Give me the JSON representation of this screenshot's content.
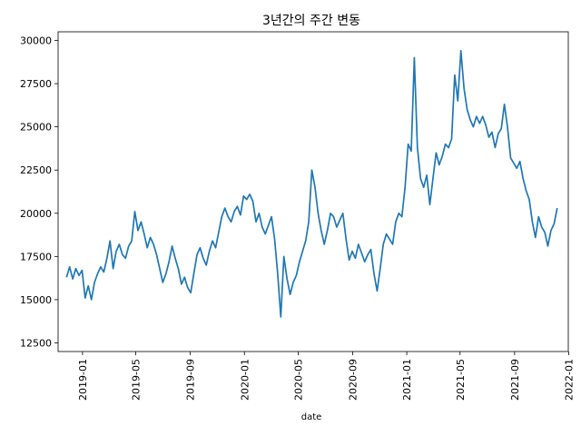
{
  "chart_data": {
    "type": "line",
    "title": "3년간의 주간 변동",
    "xlabel": "date",
    "ylabel": "",
    "ylim": [
      12000,
      30500
    ],
    "xlim": [
      "2018-11-07",
      "2021-12-31"
    ],
    "grid": false,
    "series_color": "#1f77b4",
    "xticks": [
      "2019-01",
      "2019-05",
      "2019-09",
      "2020-01",
      "2020-05",
      "2020-09",
      "2021-01",
      "2021-05",
      "2021-09",
      "2022-01"
    ],
    "yticks": [
      12500,
      15000,
      17500,
      20000,
      22500,
      25000,
      27500,
      30000
    ],
    "ytick_labels": [
      "12500",
      "15000",
      "17500",
      "20000",
      "22500",
      "25000",
      "27500",
      "30000"
    ],
    "series": [
      {
        "values": [
          [
            "2018-11-26",
            16300
          ],
          [
            "2018-12-03",
            16900
          ],
          [
            "2018-12-10",
            16200
          ],
          [
            "2018-12-17",
            16800
          ],
          [
            "2018-12-24",
            16400
          ],
          [
            "2018-12-31",
            16700
          ],
          [
            "2019-01-07",
            15100
          ],
          [
            "2019-01-14",
            15800
          ],
          [
            "2019-01-21",
            15000
          ],
          [
            "2019-01-28",
            16000
          ],
          [
            "2019-02-04",
            16500
          ],
          [
            "2019-02-11",
            16900
          ],
          [
            "2019-02-18",
            16600
          ],
          [
            "2019-02-25",
            17400
          ],
          [
            "2019-03-04",
            18400
          ],
          [
            "2019-03-11",
            16800
          ],
          [
            "2019-03-18",
            17800
          ],
          [
            "2019-03-25",
            18200
          ],
          [
            "2019-04-01",
            17600
          ],
          [
            "2019-04-08",
            17400
          ],
          [
            "2019-04-15",
            18100
          ],
          [
            "2019-04-22",
            18400
          ],
          [
            "2019-04-29",
            20100
          ],
          [
            "2019-05-06",
            19000
          ],
          [
            "2019-05-13",
            19500
          ],
          [
            "2019-05-20",
            18800
          ],
          [
            "2019-05-27",
            18000
          ],
          [
            "2019-06-03",
            18600
          ],
          [
            "2019-06-10",
            18200
          ],
          [
            "2019-06-17",
            17600
          ],
          [
            "2019-06-24",
            16800
          ],
          [
            "2019-07-01",
            16000
          ],
          [
            "2019-07-08",
            16500
          ],
          [
            "2019-07-15",
            17200
          ],
          [
            "2019-07-22",
            18100
          ],
          [
            "2019-07-29",
            17400
          ],
          [
            "2019-08-05",
            16800
          ],
          [
            "2019-08-12",
            15900
          ],
          [
            "2019-08-19",
            16300
          ],
          [
            "2019-08-26",
            15700
          ],
          [
            "2019-09-02",
            15400
          ],
          [
            "2019-09-09",
            16500
          ],
          [
            "2019-09-16",
            17600
          ],
          [
            "2019-09-23",
            18000
          ],
          [
            "2019-09-30",
            17400
          ],
          [
            "2019-10-07",
            17000
          ],
          [
            "2019-10-14",
            17800
          ],
          [
            "2019-10-21",
            18400
          ],
          [
            "2019-10-28",
            18000
          ],
          [
            "2019-11-04",
            18900
          ],
          [
            "2019-11-11",
            19800
          ],
          [
            "2019-11-18",
            20300
          ],
          [
            "2019-11-25",
            19800
          ],
          [
            "2019-12-02",
            19500
          ],
          [
            "2019-12-09",
            20100
          ],
          [
            "2019-12-16",
            20400
          ],
          [
            "2019-12-23",
            19900
          ],
          [
            "2019-12-30",
            21000
          ],
          [
            "2020-01-06",
            20800
          ],
          [
            "2020-01-13",
            21100
          ],
          [
            "2020-01-20",
            20700
          ],
          [
            "2020-01-27",
            19500
          ],
          [
            "2020-02-03",
            20000
          ],
          [
            "2020-02-10",
            19200
          ],
          [
            "2020-02-17",
            18800
          ],
          [
            "2020-02-24",
            19300
          ],
          [
            "2020-03-02",
            19800
          ],
          [
            "2020-03-09",
            18500
          ],
          [
            "2020-03-16",
            16500
          ],
          [
            "2020-03-23",
            14000
          ],
          [
            "2020-03-30",
            17500
          ],
          [
            "2020-04-06",
            16200
          ],
          [
            "2020-04-13",
            15300
          ],
          [
            "2020-04-20",
            16000
          ],
          [
            "2020-04-27",
            16400
          ],
          [
            "2020-05-04",
            17200
          ],
          [
            "2020-05-11",
            17800
          ],
          [
            "2020-05-18",
            18400
          ],
          [
            "2020-05-25",
            19500
          ],
          [
            "2020-06-01",
            22500
          ],
          [
            "2020-06-08",
            21500
          ],
          [
            "2020-06-15",
            20000
          ],
          [
            "2020-06-22",
            19000
          ],
          [
            "2020-06-29",
            18200
          ],
          [
            "2020-07-06",
            19000
          ],
          [
            "2020-07-13",
            20000
          ],
          [
            "2020-07-20",
            19800
          ],
          [
            "2020-07-27",
            19200
          ],
          [
            "2020-08-03",
            19600
          ],
          [
            "2020-08-10",
            20000
          ],
          [
            "2020-08-17",
            18500
          ],
          [
            "2020-08-24",
            17300
          ],
          [
            "2020-08-31",
            17800
          ],
          [
            "2020-09-07",
            17400
          ],
          [
            "2020-09-14",
            18200
          ],
          [
            "2020-09-21",
            17700
          ],
          [
            "2020-09-28",
            17200
          ],
          [
            "2020-10-05",
            17600
          ],
          [
            "2020-10-12",
            17900
          ],
          [
            "2020-10-19",
            16500
          ],
          [
            "2020-10-26",
            15500
          ],
          [
            "2020-11-02",
            16800
          ],
          [
            "2020-11-09",
            18200
          ],
          [
            "2020-11-16",
            18800
          ],
          [
            "2020-11-23",
            18500
          ],
          [
            "2020-11-30",
            18200
          ],
          [
            "2020-12-07",
            19500
          ],
          [
            "2020-12-14",
            20000
          ],
          [
            "2020-12-21",
            19800
          ],
          [
            "2020-12-28",
            21500
          ],
          [
            "2021-01-04",
            24000
          ],
          [
            "2021-01-11",
            23600
          ],
          [
            "2021-01-18",
            29000
          ],
          [
            "2021-01-25",
            23800
          ],
          [
            "2021-02-01",
            22000
          ],
          [
            "2021-02-08",
            21500
          ],
          [
            "2021-02-15",
            22200
          ],
          [
            "2021-02-22",
            20500
          ],
          [
            "2021-03-01",
            22000
          ],
          [
            "2021-03-08",
            23500
          ],
          [
            "2021-03-15",
            22800
          ],
          [
            "2021-03-22",
            23300
          ],
          [
            "2021-03-29",
            24000
          ],
          [
            "2021-04-05",
            23800
          ],
          [
            "2021-04-12",
            24300
          ],
          [
            "2021-04-19",
            28000
          ],
          [
            "2021-04-26",
            26500
          ],
          [
            "2021-05-03",
            29400
          ],
          [
            "2021-05-10",
            27200
          ],
          [
            "2021-05-17",
            26000
          ],
          [
            "2021-05-24",
            25400
          ],
          [
            "2021-05-31",
            25000
          ],
          [
            "2021-06-07",
            25600
          ],
          [
            "2021-06-14",
            25200
          ],
          [
            "2021-06-21",
            25600
          ],
          [
            "2021-06-28",
            25100
          ],
          [
            "2021-07-05",
            24400
          ],
          [
            "2021-07-12",
            24700
          ],
          [
            "2021-07-19",
            23800
          ],
          [
            "2021-07-26",
            24600
          ],
          [
            "2021-08-02",
            24900
          ],
          [
            "2021-08-09",
            26300
          ],
          [
            "2021-08-16",
            25000
          ],
          [
            "2021-08-23",
            23200
          ],
          [
            "2021-08-30",
            22900
          ],
          [
            "2021-09-06",
            22600
          ],
          [
            "2021-09-13",
            23000
          ],
          [
            "2021-09-20",
            22000
          ],
          [
            "2021-09-27",
            21300
          ],
          [
            "2021-10-04",
            20800
          ],
          [
            "2021-10-11",
            19500
          ],
          [
            "2021-10-18",
            18600
          ],
          [
            "2021-10-25",
            19800
          ],
          [
            "2021-11-01",
            19200
          ],
          [
            "2021-11-08",
            18900
          ],
          [
            "2021-11-15",
            18100
          ],
          [
            "2021-11-22",
            19000
          ],
          [
            "2021-11-29",
            19400
          ],
          [
            "2021-12-06",
            20300
          ]
        ]
      }
    ]
  }
}
